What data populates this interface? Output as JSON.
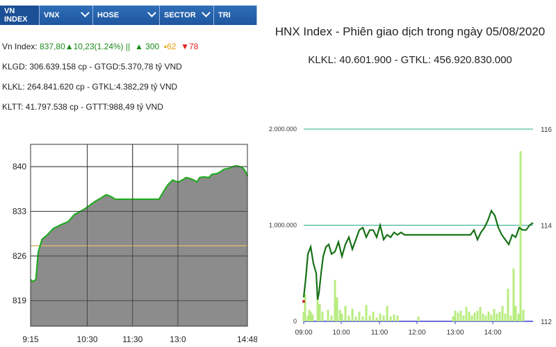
{
  "left_panel": {
    "tabs": [
      {
        "label": "VN INDEX",
        "active": true,
        "dropdown": false
      },
      {
        "label": "VNX",
        "active": false,
        "dropdown": true
      },
      {
        "label": "HOSE",
        "active": false,
        "dropdown": true
      },
      {
        "label": "SECTOR",
        "active": false,
        "dropdown": true
      },
      {
        "label": "TRI",
        "active": false,
        "dropdown": false
      }
    ],
    "index_line": {
      "label": "Vn Index:",
      "value": "837,80",
      "change": "▲10,23(1.24%)",
      "sep": "||",
      "up": "▲ 300",
      "unchanged": "▪62",
      "down": "▼78"
    },
    "stats": [
      "KLGD: 306.639.158 cp - GTGD:5.370,78 tỷ VND",
      "KLKL: 264.841.620 cp - GTKL:4.382,29 tỷ VND",
      "KLTT: 41.797.538 cp - GTTT:988,49 tỷ VND"
    ],
    "colors": {
      "tab_bg": "#1f56a0",
      "area_fill": "#8c8c8c",
      "line": "#22aa22",
      "reference": "#d9b870",
      "up": "#1a8a1a",
      "unchanged": "#e8a000",
      "down": "#e02020"
    }
  },
  "right_panel": {
    "title": "HNX Index - Phiên giao dịch trong ngày 05/08/2020",
    "subtitle": "KLKL: 40.601.900 - GTKL: 456.920.830.000",
    "colors": {
      "line": "#157015",
      "volume": "#b8ec80",
      "grid": "#22aa88",
      "axis": "#3a3ad0",
      "marker": "#cc2222"
    }
  },
  "chart_data": [
    {
      "type": "area",
      "y_ticks": [
        "840",
        "833",
        "826",
        "819"
      ],
      "x_ticks": [
        "9:15",
        "10:30",
        "11:30",
        "13:0",
        "14:48"
      ],
      "ylim": [
        815,
        843.5
      ],
      "xlim": [
        0,
        287
      ],
      "reference_value": 827.6,
      "grid": true,
      "x": [
        0,
        3,
        7,
        10,
        15,
        22,
        30,
        40,
        50,
        58,
        66,
        72,
        80,
        86,
        92,
        100,
        105,
        108,
        112,
        120,
        150,
        170,
        178,
        182,
        188,
        192,
        196,
        202,
        206,
        212,
        216,
        220,
        224,
        230,
        236,
        240,
        246,
        250,
        256,
        264,
        270,
        274,
        280,
        283,
        286,
        287
      ],
      "values": [
        822.3,
        822.0,
        822.3,
        826.5,
        828.6,
        829.3,
        830.3,
        830.9,
        831.4,
        832.5,
        833.0,
        833.4,
        834.1,
        834.6,
        835.0,
        835.6,
        835.4,
        835.2,
        834.9,
        834.9,
        834.9,
        834.9,
        836.5,
        837.2,
        837.9,
        837.7,
        837.6,
        838.0,
        838.3,
        838.1,
        837.9,
        837.6,
        838.3,
        838.4,
        838.3,
        838.8,
        838.9,
        839.1,
        839.6,
        839.8,
        840.1,
        840.1,
        839.9,
        839.5,
        838.9,
        838.5
      ]
    },
    {
      "type": "line",
      "title": "HNX Index - Phiên giao dịch trong ngày 05/08/2020",
      "left_y_ticks": [
        "2.000.000",
        "1.000.000",
        "0"
      ],
      "right_y_ticks": [
        "116",
        "114",
        "112"
      ],
      "x_ticks": [
        "09:00",
        "10:00",
        "11:00",
        "12:00",
        "13:00",
        "14:00"
      ],
      "ylim_left": [
        0,
        2000000
      ],
      "ylim_right": [
        112,
        116
      ],
      "grid": true,
      "series": [
        {
          "type": "line",
          "x": [
            0,
            3,
            6,
            10,
            14,
            18,
            20,
            22,
            25,
            28,
            32,
            36,
            40,
            45,
            50,
            55,
            60,
            65,
            70,
            75,
            80,
            85,
            90,
            95,
            100,
            105,
            110,
            115,
            120,
            125,
            130,
            135,
            140,
            145,
            150,
            155,
            160,
            165,
            170,
            175,
            180,
            185,
            190,
            195,
            200,
            205,
            210,
            215,
            220,
            225,
            230,
            235,
            240,
            245,
            250,
            255,
            260,
            265,
            270,
            275,
            280,
            285,
            290,
            295,
            300,
            305,
            310,
            315,
            320,
            325,
            330
          ],
          "values": [
            112.5,
            112.9,
            113.4,
            113.55,
            113.2,
            113.0,
            112.45,
            112.6,
            113.0,
            113.35,
            113.55,
            113.6,
            113.4,
            113.45,
            113.65,
            113.35,
            113.6,
            113.75,
            113.5,
            113.7,
            113.9,
            113.95,
            113.75,
            113.9,
            113.9,
            113.75,
            114.0,
            113.7,
            113.8,
            113.75,
            113.85,
            113.8,
            113.85,
            113.8,
            113.8,
            113.8,
            113.8,
            113.8,
            113.8,
            113.8,
            113.8,
            113.8,
            113.8,
            113.8,
            113.8,
            113.8,
            113.8,
            113.8,
            113.8,
            113.8,
            113.8,
            113.8,
            113.8,
            113.9,
            113.7,
            113.85,
            113.95,
            114.1,
            114.3,
            114.2,
            113.95,
            113.8,
            113.7,
            113.6,
            113.8,
            113.75,
            113.95,
            113.9,
            113.9,
            114.0,
            114.05
          ]
        },
        {
          "type": "bar",
          "x": [
            0,
            2,
            6,
            8,
            10,
            13,
            20,
            23,
            27,
            35,
            40,
            45,
            48,
            52,
            55,
            60,
            65,
            70,
            75,
            80,
            85,
            90,
            95,
            100,
            105,
            110,
            115,
            120,
            125,
            130,
            135,
            165,
            215,
            218,
            222,
            226,
            230,
            234,
            238,
            242,
            246,
            250,
            254,
            258,
            262,
            266,
            270,
            274,
            278,
            282,
            286,
            290,
            294,
            298,
            302,
            305,
            309,
            312,
            316
          ],
          "values": [
            100000,
            280000,
            60000,
            120000,
            100000,
            70000,
            250000,
            180000,
            100000,
            120000,
            60000,
            430000,
            250000,
            120000,
            80000,
            160000,
            60000,
            130000,
            50000,
            100000,
            50000,
            170000,
            60000,
            100000,
            40000,
            80000,
            60000,
            160000,
            50000,
            70000,
            60000,
            50000,
            50000,
            110000,
            90000,
            110000,
            60000,
            150000,
            100000,
            60000,
            90000,
            110000,
            150000,
            80000,
            60000,
            100000,
            70000,
            130000,
            80000,
            100000,
            160000,
            80000,
            340000,
            60000,
            550000,
            160000,
            80000,
            1770000,
            120000
          ]
        }
      ]
    }
  ]
}
